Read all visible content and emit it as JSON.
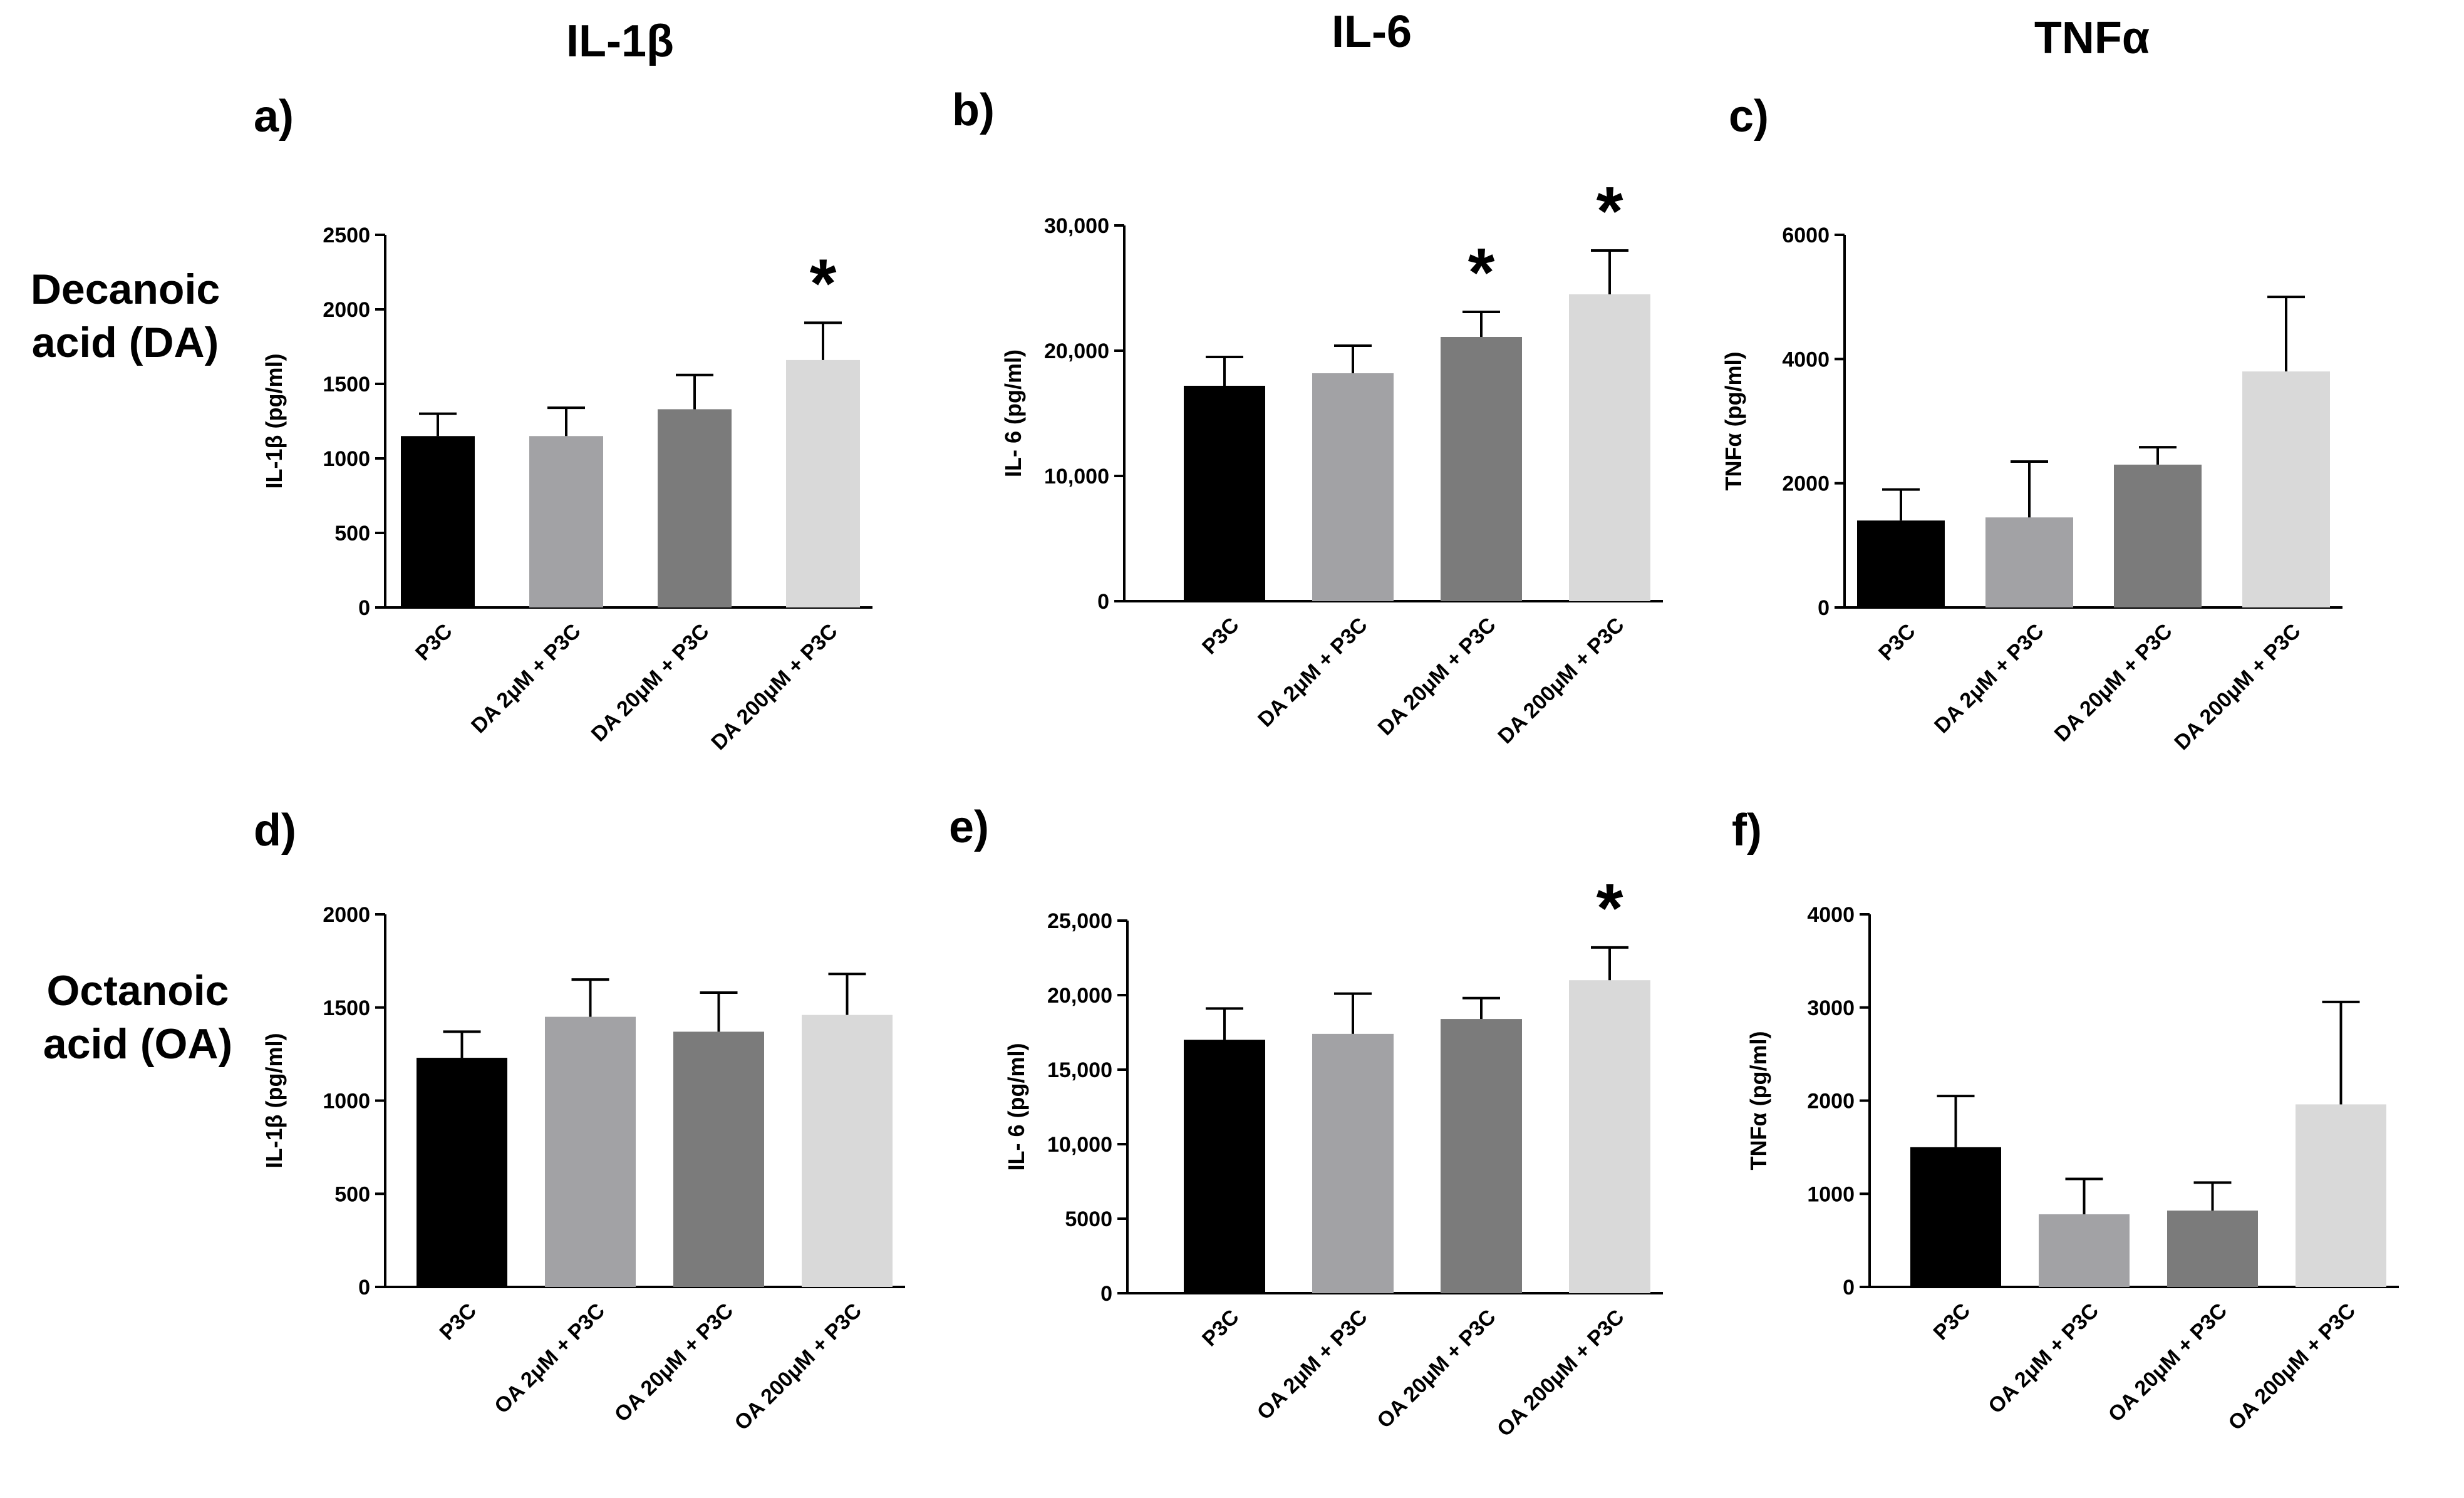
{
  "column_titles": [
    "IL-1β",
    "IL-6",
    "TNFα"
  ],
  "row_labels": [
    {
      "line1": "Decanoic",
      "line2": "acid (DA)"
    },
    {
      "line1": "Octanoic",
      "line2": "acid (OA)"
    }
  ],
  "colors": {
    "bars": [
      "#000000",
      "#a2a2a5",
      "#7b7b7b",
      "#d9d9d9"
    ],
    "axis": "#000000",
    "text": "#000000"
  },
  "chart_data": [
    {
      "panel": "a)",
      "type": "bar",
      "ylabel": "IL-1β (pg/ml)",
      "categories": [
        "P3C",
        "DA 2μM + P3C",
        "DA 20μM + P3C",
        "DA 200μM + P3C"
      ],
      "values": [
        1150,
        1150,
        1330,
        1660
      ],
      "errors": [
        150,
        190,
        230,
        250
      ],
      "ylim": [
        0,
        2500
      ],
      "yticks": [
        0,
        500,
        1000,
        1500,
        2000,
        2500
      ],
      "ytick_labels": [
        "0",
        "500",
        "1000",
        "1500",
        "2000",
        "2500"
      ],
      "significant": [
        false,
        false,
        false,
        true
      ],
      "sig_marker": "*"
    },
    {
      "panel": "b)",
      "type": "bar",
      "ylabel": "IL- 6 (pg/ml)",
      "categories": [
        "P3C",
        "DA 2μM + P3C",
        "DA 20μM + P3C",
        "DA 200μM + P3C"
      ],
      "values": [
        17200,
        18200,
        21100,
        24500
      ],
      "errors": [
        2300,
        2200,
        2000,
        3500
      ],
      "ylim": [
        0,
        30000
      ],
      "yticks": [
        0,
        10000,
        20000,
        30000
      ],
      "ytick_labels": [
        "0",
        "10,000",
        "20,000",
        "30,000"
      ],
      "significant": [
        false,
        false,
        true,
        true
      ],
      "sig_marker": "*"
    },
    {
      "panel": "c)",
      "type": "bar",
      "ylabel": "TNFα (pg/ml)",
      "categories": [
        "P3C",
        "DA 2μM + P3C",
        "DA 20μM + P3C",
        "DA 200μM + P3C"
      ],
      "values": [
        1400,
        1450,
        2300,
        3800
      ],
      "errors": [
        500,
        900,
        280,
        1200
      ],
      "ylim": [
        0,
        6000
      ],
      "yticks": [
        0,
        2000,
        4000,
        6000
      ],
      "ytick_labels": [
        "0",
        "2000",
        "4000",
        "6000"
      ],
      "significant": [
        false,
        false,
        false,
        false
      ],
      "sig_marker": "*"
    },
    {
      "panel": "d)",
      "type": "bar",
      "ylabel": "IL-1β (pg/ml)",
      "categories": [
        "P3C",
        "OA 2μM + P3C",
        "OA 20μM + P3C",
        "OA 200μM + P3C"
      ],
      "values": [
        1230,
        1450,
        1370,
        1460
      ],
      "errors": [
        140,
        200,
        210,
        220
      ],
      "ylim": [
        0,
        2000
      ],
      "yticks": [
        0,
        500,
        1000,
        1500,
        2000
      ],
      "ytick_labels": [
        "0",
        "500",
        "1000",
        "1500",
        "2000"
      ],
      "significant": [
        false,
        false,
        false,
        false
      ],
      "sig_marker": "*"
    },
    {
      "panel": "e)",
      "type": "bar",
      "ylabel": "IL- 6 (pg/ml)",
      "categories": [
        "P3C",
        "OA 2μM + P3C",
        "OA 20μM + P3C",
        "OA 200μM + P3C"
      ],
      "values": [
        17000,
        17400,
        18400,
        21000
      ],
      "errors": [
        2100,
        2700,
        1400,
        2200
      ],
      "ylim": [
        0,
        25000
      ],
      "yticks": [
        0,
        5000,
        10000,
        15000,
        20000,
        25000
      ],
      "ytick_labels": [
        "0",
        "5000",
        "10,000",
        "15,000",
        "20,000",
        "25,000"
      ],
      "significant": [
        false,
        false,
        false,
        true
      ],
      "sig_marker": "*"
    },
    {
      "panel": "f)",
      "type": "bar",
      "ylabel": "TNFα (pg/ml)",
      "categories": [
        "P3C",
        "OA 2μM + P3C",
        "OA 20μM + P3C",
        "OA 200μM + P3C"
      ],
      "values": [
        1500,
        780,
        820,
        1960
      ],
      "errors": [
        550,
        380,
        300,
        1100
      ],
      "ylim": [
        0,
        4000
      ],
      "yticks": [
        0,
        1000,
        2000,
        3000,
        4000
      ],
      "ytick_labels": [
        "0",
        "1000",
        "2000",
        "3000",
        "4000"
      ],
      "significant": [
        false,
        false,
        false,
        false
      ],
      "sig_marker": "*"
    }
  ]
}
